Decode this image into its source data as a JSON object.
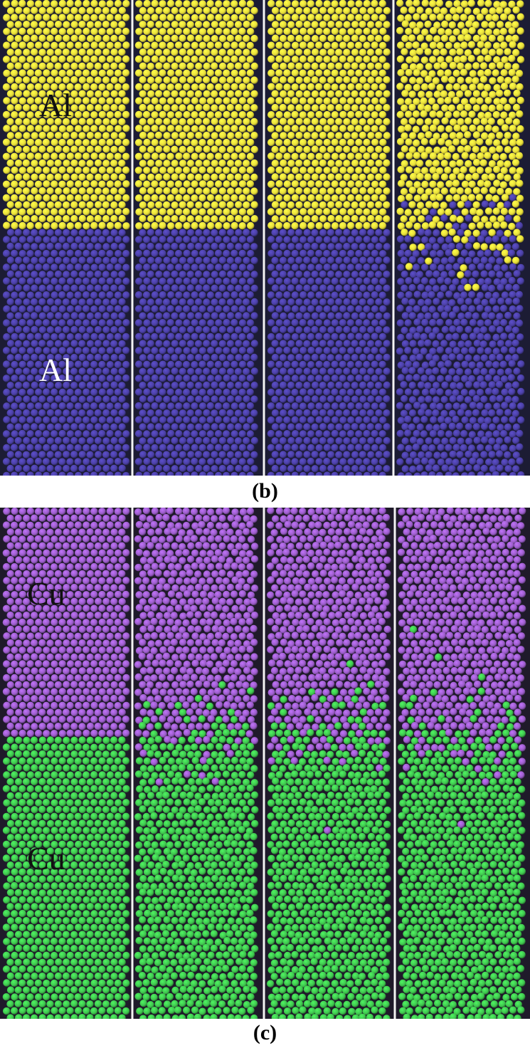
{
  "figure": {
    "panel_b": {
      "caption": "(b)",
      "upper_label": "Al",
      "lower_label": "Al",
      "upper_color": "#e6dc3a",
      "lower_color": "#4a3fa3",
      "frame_color": "#1c1c34",
      "columns": 4
    },
    "panel_c": {
      "caption": "(c)",
      "upper_label": "Cu",
      "lower_label": "Cu",
      "upper_color": "#9a5cc8",
      "lower_color": "#3fc44e",
      "frame_color": "#1f1a2a",
      "columns": 4
    }
  }
}
